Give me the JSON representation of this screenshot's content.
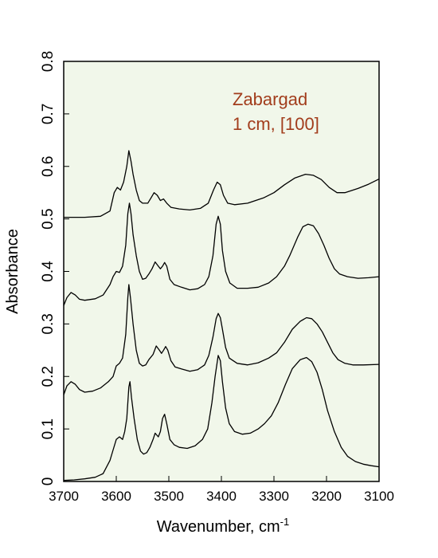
{
  "chart_data": {
    "type": "line",
    "title": "",
    "xlabel": "Wavenumber, cm",
    "xlabel_superscript": "-1",
    "ylabel": "Absorbance",
    "xlim": [
      3700,
      3100
    ],
    "ylim": [
      0,
      0.8
    ],
    "x_reversed": true,
    "grid": false,
    "background_color": "#f1f7ea",
    "line_color": "#000000",
    "x_ticks": [
      3700,
      3600,
      3500,
      3400,
      3300,
      3200,
      3100
    ],
    "y_ticks": [
      0,
      0.1,
      0.2,
      0.3,
      0.4,
      0.5,
      0.6,
      0.7,
      0.8
    ],
    "y_tick_labels": [
      "0",
      "0.1",
      "0.2",
      "0.3",
      "0.4",
      "0.5",
      "0.6",
      "0.7",
      "0.8"
    ],
    "annotation": {
      "lines": [
        "Zabargad",
        "1 cm, [100]"
      ],
      "color": "#a23d1c"
    },
    "series": [
      {
        "points": [
          [
            3700,
            0.503
          ],
          [
            3660,
            0.503
          ],
          [
            3630,
            0.505
          ],
          [
            3612,
            0.515
          ],
          [
            3604,
            0.55
          ],
          [
            3598,
            0.56
          ],
          [
            3592,
            0.555
          ],
          [
            3586,
            0.57
          ],
          [
            3580,
            0.6
          ],
          [
            3576,
            0.63
          ],
          [
            3572,
            0.61
          ],
          [
            3568,
            0.585
          ],
          [
            3562,
            0.555
          ],
          [
            3556,
            0.535
          ],
          [
            3550,
            0.53
          ],
          [
            3540,
            0.53
          ],
          [
            3534,
            0.54
          ],
          [
            3528,
            0.55
          ],
          [
            3522,
            0.545
          ],
          [
            3516,
            0.535
          ],
          [
            3510,
            0.538
          ],
          [
            3504,
            0.53
          ],
          [
            3496,
            0.522
          ],
          [
            3480,
            0.519
          ],
          [
            3460,
            0.517
          ],
          [
            3440,
            0.52
          ],
          [
            3425,
            0.53
          ],
          [
            3415,
            0.555
          ],
          [
            3408,
            0.57
          ],
          [
            3402,
            0.565
          ],
          [
            3396,
            0.545
          ],
          [
            3388,
            0.53
          ],
          [
            3375,
            0.527
          ],
          [
            3350,
            0.53
          ],
          [
            3320,
            0.54
          ],
          [
            3300,
            0.55
          ],
          [
            3280,
            0.565
          ],
          [
            3260,
            0.578
          ],
          [
            3240,
            0.585
          ],
          [
            3225,
            0.583
          ],
          [
            3210,
            0.575
          ],
          [
            3195,
            0.56
          ],
          [
            3180,
            0.55
          ],
          [
            3165,
            0.55
          ],
          [
            3140,
            0.558
          ],
          [
            3120,
            0.566
          ],
          [
            3100,
            0.576
          ]
        ]
      },
      {
        "points": [
          [
            3700,
            0.335
          ],
          [
            3694,
            0.35
          ],
          [
            3686,
            0.36
          ],
          [
            3678,
            0.355
          ],
          [
            3670,
            0.347
          ],
          [
            3660,
            0.345
          ],
          [
            3640,
            0.348
          ],
          [
            3625,
            0.355
          ],
          [
            3612,
            0.375
          ],
          [
            3606,
            0.39
          ],
          [
            3600,
            0.4
          ],
          [
            3594,
            0.398
          ],
          [
            3588,
            0.41
          ],
          [
            3582,
            0.45
          ],
          [
            3578,
            0.51
          ],
          [
            3575,
            0.53
          ],
          [
            3572,
            0.51
          ],
          [
            3568,
            0.47
          ],
          [
            3562,
            0.43
          ],
          [
            3556,
            0.4
          ],
          [
            3550,
            0.385
          ],
          [
            3544,
            0.387
          ],
          [
            3538,
            0.395
          ],
          [
            3532,
            0.405
          ],
          [
            3526,
            0.418
          ],
          [
            3520,
            0.41
          ],
          [
            3516,
            0.405
          ],
          [
            3512,
            0.41
          ],
          [
            3508,
            0.417
          ],
          [
            3504,
            0.41
          ],
          [
            3498,
            0.385
          ],
          [
            3490,
            0.375
          ],
          [
            3476,
            0.37
          ],
          [
            3460,
            0.365
          ],
          [
            3445,
            0.367
          ],
          [
            3432,
            0.375
          ],
          [
            3424,
            0.39
          ],
          [
            3416,
            0.43
          ],
          [
            3410,
            0.49
          ],
          [
            3406,
            0.505
          ],
          [
            3402,
            0.49
          ],
          [
            3398,
            0.44
          ],
          [
            3392,
            0.4
          ],
          [
            3384,
            0.378
          ],
          [
            3370,
            0.368
          ],
          [
            3350,
            0.368
          ],
          [
            3330,
            0.37
          ],
          [
            3310,
            0.378
          ],
          [
            3295,
            0.39
          ],
          [
            3280,
            0.41
          ],
          [
            3270,
            0.43
          ],
          [
            3255,
            0.465
          ],
          [
            3245,
            0.485
          ],
          [
            3235,
            0.49
          ],
          [
            3225,
            0.487
          ],
          [
            3215,
            0.472
          ],
          [
            3205,
            0.45
          ],
          [
            3195,
            0.425
          ],
          [
            3185,
            0.405
          ],
          [
            3175,
            0.395
          ],
          [
            3160,
            0.39
          ],
          [
            3140,
            0.387
          ],
          [
            3120,
            0.388
          ],
          [
            3100,
            0.39
          ]
        ]
      },
      {
        "points": [
          [
            3700,
            0.165
          ],
          [
            3694,
            0.182
          ],
          [
            3686,
            0.19
          ],
          [
            3678,
            0.185
          ],
          [
            3670,
            0.175
          ],
          [
            3660,
            0.17
          ],
          [
            3645,
            0.172
          ],
          [
            3630,
            0.178
          ],
          [
            3615,
            0.19
          ],
          [
            3606,
            0.2
          ],
          [
            3600,
            0.22
          ],
          [
            3594,
            0.225
          ],
          [
            3588,
            0.235
          ],
          [
            3582,
            0.28
          ],
          [
            3578,
            0.35
          ],
          [
            3576,
            0.375
          ],
          [
            3573,
            0.35
          ],
          [
            3568,
            0.3
          ],
          [
            3562,
            0.25
          ],
          [
            3556,
            0.225
          ],
          [
            3550,
            0.22
          ],
          [
            3544,
            0.222
          ],
          [
            3538,
            0.232
          ],
          [
            3530,
            0.242
          ],
          [
            3524,
            0.258
          ],
          [
            3518,
            0.25
          ],
          [
            3514,
            0.244
          ],
          [
            3510,
            0.25
          ],
          [
            3506,
            0.257
          ],
          [
            3502,
            0.25
          ],
          [
            3496,
            0.23
          ],
          [
            3488,
            0.218
          ],
          [
            3475,
            0.214
          ],
          [
            3460,
            0.21
          ],
          [
            3445,
            0.213
          ],
          [
            3432,
            0.222
          ],
          [
            3424,
            0.24
          ],
          [
            3416,
            0.275
          ],
          [
            3410,
            0.31
          ],
          [
            3406,
            0.32
          ],
          [
            3402,
            0.312
          ],
          [
            3398,
            0.29
          ],
          [
            3392,
            0.255
          ],
          [
            3385,
            0.235
          ],
          [
            3370,
            0.225
          ],
          [
            3350,
            0.222
          ],
          [
            3330,
            0.226
          ],
          [
            3310,
            0.235
          ],
          [
            3295,
            0.245
          ],
          [
            3280,
            0.265
          ],
          [
            3265,
            0.29
          ],
          [
            3250,
            0.305
          ],
          [
            3238,
            0.312
          ],
          [
            3228,
            0.31
          ],
          [
            3218,
            0.3
          ],
          [
            3208,
            0.285
          ],
          [
            3198,
            0.265
          ],
          [
            3188,
            0.245
          ],
          [
            3178,
            0.232
          ],
          [
            3165,
            0.225
          ],
          [
            3150,
            0.222
          ],
          [
            3130,
            0.222
          ],
          [
            3100,
            0.223
          ]
        ]
      },
      {
        "points": [
          [
            3700,
            0.002
          ],
          [
            3680,
            0.003
          ],
          [
            3660,
            0.005
          ],
          [
            3640,
            0.008
          ],
          [
            3625,
            0.015
          ],
          [
            3612,
            0.04
          ],
          [
            3606,
            0.06
          ],
          [
            3600,
            0.08
          ],
          [
            3594,
            0.085
          ],
          [
            3588,
            0.08
          ],
          [
            3584,
            0.095
          ],
          [
            3580,
            0.12
          ],
          [
            3576,
            0.18
          ],
          [
            3574,
            0.19
          ],
          [
            3571,
            0.16
          ],
          [
            3566,
            0.12
          ],
          [
            3560,
            0.08
          ],
          [
            3554,
            0.058
          ],
          [
            3548,
            0.052
          ],
          [
            3542,
            0.055
          ],
          [
            3536,
            0.065
          ],
          [
            3530,
            0.08
          ],
          [
            3526,
            0.092
          ],
          [
            3520,
            0.085
          ],
          [
            3516,
            0.095
          ],
          [
            3512,
            0.12
          ],
          [
            3508,
            0.128
          ],
          [
            3504,
            0.11
          ],
          [
            3498,
            0.08
          ],
          [
            3490,
            0.07
          ],
          [
            3480,
            0.065
          ],
          [
            3465,
            0.063
          ],
          [
            3450,
            0.068
          ],
          [
            3436,
            0.08
          ],
          [
            3426,
            0.1
          ],
          [
            3418,
            0.15
          ],
          [
            3412,
            0.2
          ],
          [
            3406,
            0.24
          ],
          [
            3402,
            0.23
          ],
          [
            3398,
            0.19
          ],
          [
            3392,
            0.14
          ],
          [
            3385,
            0.11
          ],
          [
            3375,
            0.095
          ],
          [
            3360,
            0.09
          ],
          [
            3345,
            0.092
          ],
          [
            3330,
            0.1
          ],
          [
            3318,
            0.11
          ],
          [
            3305,
            0.125
          ],
          [
            3292,
            0.15
          ],
          [
            3278,
            0.185
          ],
          [
            3265,
            0.215
          ],
          [
            3250,
            0.232
          ],
          [
            3238,
            0.236
          ],
          [
            3228,
            0.228
          ],
          [
            3218,
            0.208
          ],
          [
            3208,
            0.175
          ],
          [
            3198,
            0.135
          ],
          [
            3185,
            0.095
          ],
          [
            3172,
            0.065
          ],
          [
            3160,
            0.048
          ],
          [
            3145,
            0.038
          ],
          [
            3130,
            0.033
          ],
          [
            3115,
            0.03
          ],
          [
            3100,
            0.028
          ]
        ]
      }
    ]
  }
}
